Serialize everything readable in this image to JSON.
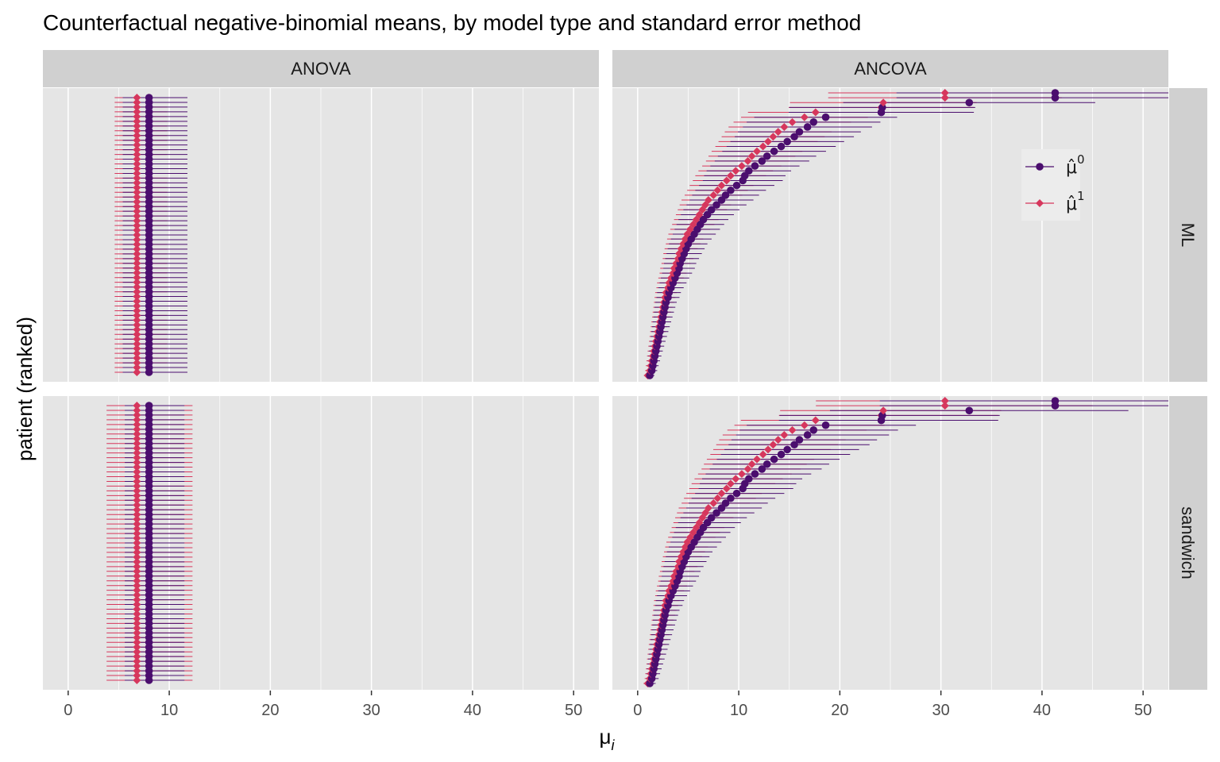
{
  "chart_data": {
    "type": "scatter",
    "title": "Counterfactual negative-binomial means, by model type and standard error method",
    "xlabel": "μ",
    "xlabel_subscript": "i",
    "ylabel": "patient (ranked)",
    "xlim": [
      -2.5,
      52.5
    ],
    "xticks": [
      0,
      10,
      20,
      30,
      40,
      50
    ],
    "grid": true,
    "legend_position": "inside-top-right",
    "colors": {
      "mu0": "#4b0e6e",
      "mu1": "#d6375d",
      "panel_bg": "#e5e5e5",
      "strip_bg": "#d0d0d0",
      "grid": "#ffffff"
    },
    "columns": [
      "ANOVA",
      "ANCOVA"
    ],
    "rows": [
      "ML",
      "sandwich"
    ],
    "legend": [
      {
        "key": "mu0",
        "glyph": "μ̂",
        "sup": "0",
        "marker": "circle"
      },
      {
        "key": "mu1",
        "glyph": "μ̂",
        "sup": "1",
        "marker": "diamond"
      }
    ],
    "anova": {
      "n_patients": 59,
      "mu0": 8.0,
      "mu1": 6.8,
      "ci": {
        "ML": {
          "mu0": [
            5.4,
            11.8
          ],
          "mu1": [
            4.6,
            9.8
          ]
        },
        "sandwich": {
          "mu0": [
            5.6,
            11.5
          ],
          "mu1": [
            3.8,
            12.3
          ]
        }
      }
    },
    "ancova": {
      "mu0": [
        1.2,
        1.4,
        1.5,
        1.6,
        1.7,
        1.8,
        1.9,
        2.0,
        2.1,
        2.2,
        2.3,
        2.4,
        2.5,
        2.6,
        2.7,
        2.8,
        3.0,
        3.1,
        3.3,
        3.5,
        3.7,
        3.9,
        4.1,
        4.2,
        4.4,
        4.6,
        4.8,
        5.0,
        5.3,
        5.6,
        5.9,
        6.2,
        6.5,
        6.9,
        7.3,
        7.8,
        8.3,
        8.7,
        9.2,
        9.8,
        10.4,
        10.6,
        11.0,
        11.6,
        12.3,
        12.8,
        13.5,
        14.2,
        14.8,
        15.5,
        16.0,
        16.8,
        17.4,
        18.6,
        24.1,
        24.2,
        32.8,
        41.3,
        41.3
      ],
      "mu1": [
        1.0,
        1.2,
        1.3,
        1.4,
        1.5,
        1.6,
        1.7,
        1.8,
        1.9,
        2.0,
        2.1,
        2.2,
        2.3,
        2.4,
        2.5,
        2.6,
        2.7,
        2.8,
        3.0,
        3.1,
        3.3,
        3.5,
        3.6,
        3.8,
        4.0,
        4.1,
        4.3,
        4.5,
        4.7,
        4.9,
        5.2,
        5.5,
        5.8,
        6.1,
        6.4,
        6.7,
        7.0,
        7.5,
        7.9,
        8.3,
        8.8,
        9.2,
        9.7,
        10.3,
        10.9,
        11.3,
        11.8,
        12.4,
        12.9,
        13.4,
        13.9,
        14.5,
        15.3,
        16.5,
        17.6,
        24.1,
        24.3,
        30.4,
        30.4
      ],
      "ci_rel": {
        "ML": [
          0.62,
          1.38
        ],
        "sandwich": [
          0.58,
          1.48
        ]
      }
    }
  }
}
